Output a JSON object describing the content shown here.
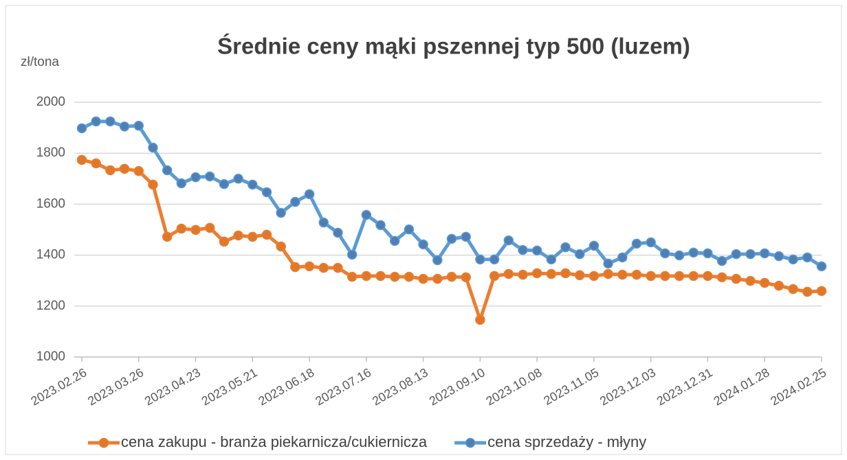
{
  "chart_data": {
    "type": "line",
    "title": "Średnie ceny mąki pszennej typ 500 (luzem)",
    "y_label": "zł/tona",
    "categories": [
      "2023.02.26",
      null,
      null,
      null,
      "2023.03.26",
      null,
      null,
      null,
      "2023.04.23",
      null,
      null,
      null,
      "2023.05.21",
      null,
      null,
      null,
      "2023.06.18",
      null,
      null,
      null,
      "2023.07.16",
      null,
      null,
      null,
      "2023.08.13",
      null,
      null,
      null,
      "2023.09.10",
      null,
      null,
      null,
      "2023.10.08",
      null,
      null,
      null,
      "2023.11.05",
      null,
      null,
      null,
      "2023.12.03",
      null,
      null,
      null,
      "2023.12.31",
      null,
      null,
      null,
      "2024.01.28",
      null,
      null,
      null,
      "2024.02.25"
    ],
    "series": [
      {
        "name": "cena zakupu - branża piekarnicza/cukiernicza",
        "color": "#ed7d31",
        "marker_color": "#e0782a",
        "values": [
          1774,
          1760,
          1733,
          1739,
          1730,
          1677,
          1472,
          1504,
          1499,
          1507,
          1453,
          1477,
          1472,
          1480,
          1434,
          1353,
          1356,
          1350,
          1350,
          1315,
          1318,
          1318,
          1315,
          1315,
          1307,
          1307,
          1315,
          1313,
          1146,
          1318,
          1326,
          1323,
          1329,
          1326,
          1329,
          1321,
          1318,
          1326,
          1323,
          1323,
          1318,
          1318,
          1318,
          1318,
          1318,
          1313,
          1307,
          1299,
          1291,
          1280,
          1267,
          1256,
          1259
        ]
      },
      {
        "name": "cena sprzedaży - młyny",
        "color": "#5b9bd5",
        "marker_color": "#4f7fb3",
        "values": [
          1898,
          1925,
          1925,
          1905,
          1908,
          1822,
          1733,
          1682,
          1706,
          1709,
          1679,
          1700,
          1677,
          1647,
          1566,
          1609,
          1639,
          1528,
          1488,
          1402,
          1558,
          1518,
          1456,
          1501,
          1442,
          1380,
          1464,
          1472,
          1383,
          1383,
          1458,
          1420,
          1418,
          1383,
          1431,
          1404,
          1437,
          1367,
          1391,
          1445,
          1450,
          1407,
          1399,
          1410,
          1407,
          1377,
          1404,
          1404,
          1407,
          1396,
          1383,
          1391,
          1356
        ]
      }
    ],
    "ylim": [
      1000,
      2000
    ],
    "yticks": [
      1000,
      1200,
      1400,
      1600,
      1800,
      2000
    ],
    "grid": true
  }
}
